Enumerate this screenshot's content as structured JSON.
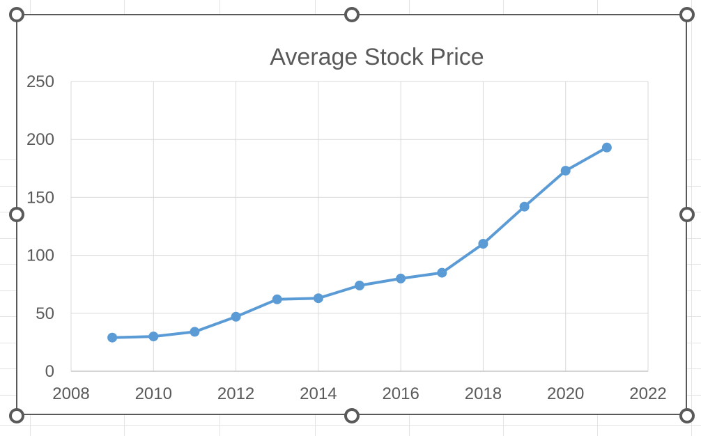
{
  "app": {
    "context": "spreadsheet-worksheet",
    "selected_object": "chart",
    "selection_handles": [
      "top-left",
      "top-center",
      "top-right",
      "middle-left",
      "middle-right",
      "bottom-left",
      "bottom-center",
      "bottom-right"
    ]
  },
  "chart_data": {
    "type": "line",
    "title": "Average Stock Price",
    "x": [
      2009,
      2010,
      2011,
      2012,
      2013,
      2014,
      2015,
      2016,
      2017,
      2018,
      2019,
      2020,
      2021
    ],
    "values": [
      29,
      30,
      34,
      47,
      62,
      63,
      74,
      80,
      85,
      110,
      142,
      173,
      193
    ],
    "series": [
      {
        "name": "Average Stock Price",
        "values": [
          29,
          30,
          34,
          47,
          62,
          63,
          74,
          80,
          85,
          110,
          142,
          173,
          193
        ]
      }
    ],
    "x_ticks": [
      2008,
      2010,
      2012,
      2014,
      2016,
      2018,
      2020,
      2022
    ],
    "y_ticks": [
      0,
      50,
      100,
      150,
      200,
      250
    ],
    "xlim": [
      2008,
      2022
    ],
    "ylim": [
      0,
      250
    ],
    "x_major_unit": 2,
    "y_major_unit": 50,
    "grid": true,
    "legend": "none",
    "marker": "circle",
    "xlabel": "",
    "ylabel": ""
  },
  "colors": {
    "series_line": "#5B9BD5",
    "series_marker": "#5B9BD5",
    "title_text": "#595959",
    "axis_text": "#595959",
    "plot_gridline": "#D9D9D9",
    "axis_line": "#C6C6C6",
    "selection_border": "#595959",
    "sheet_gridline": "#E4E4E4"
  }
}
